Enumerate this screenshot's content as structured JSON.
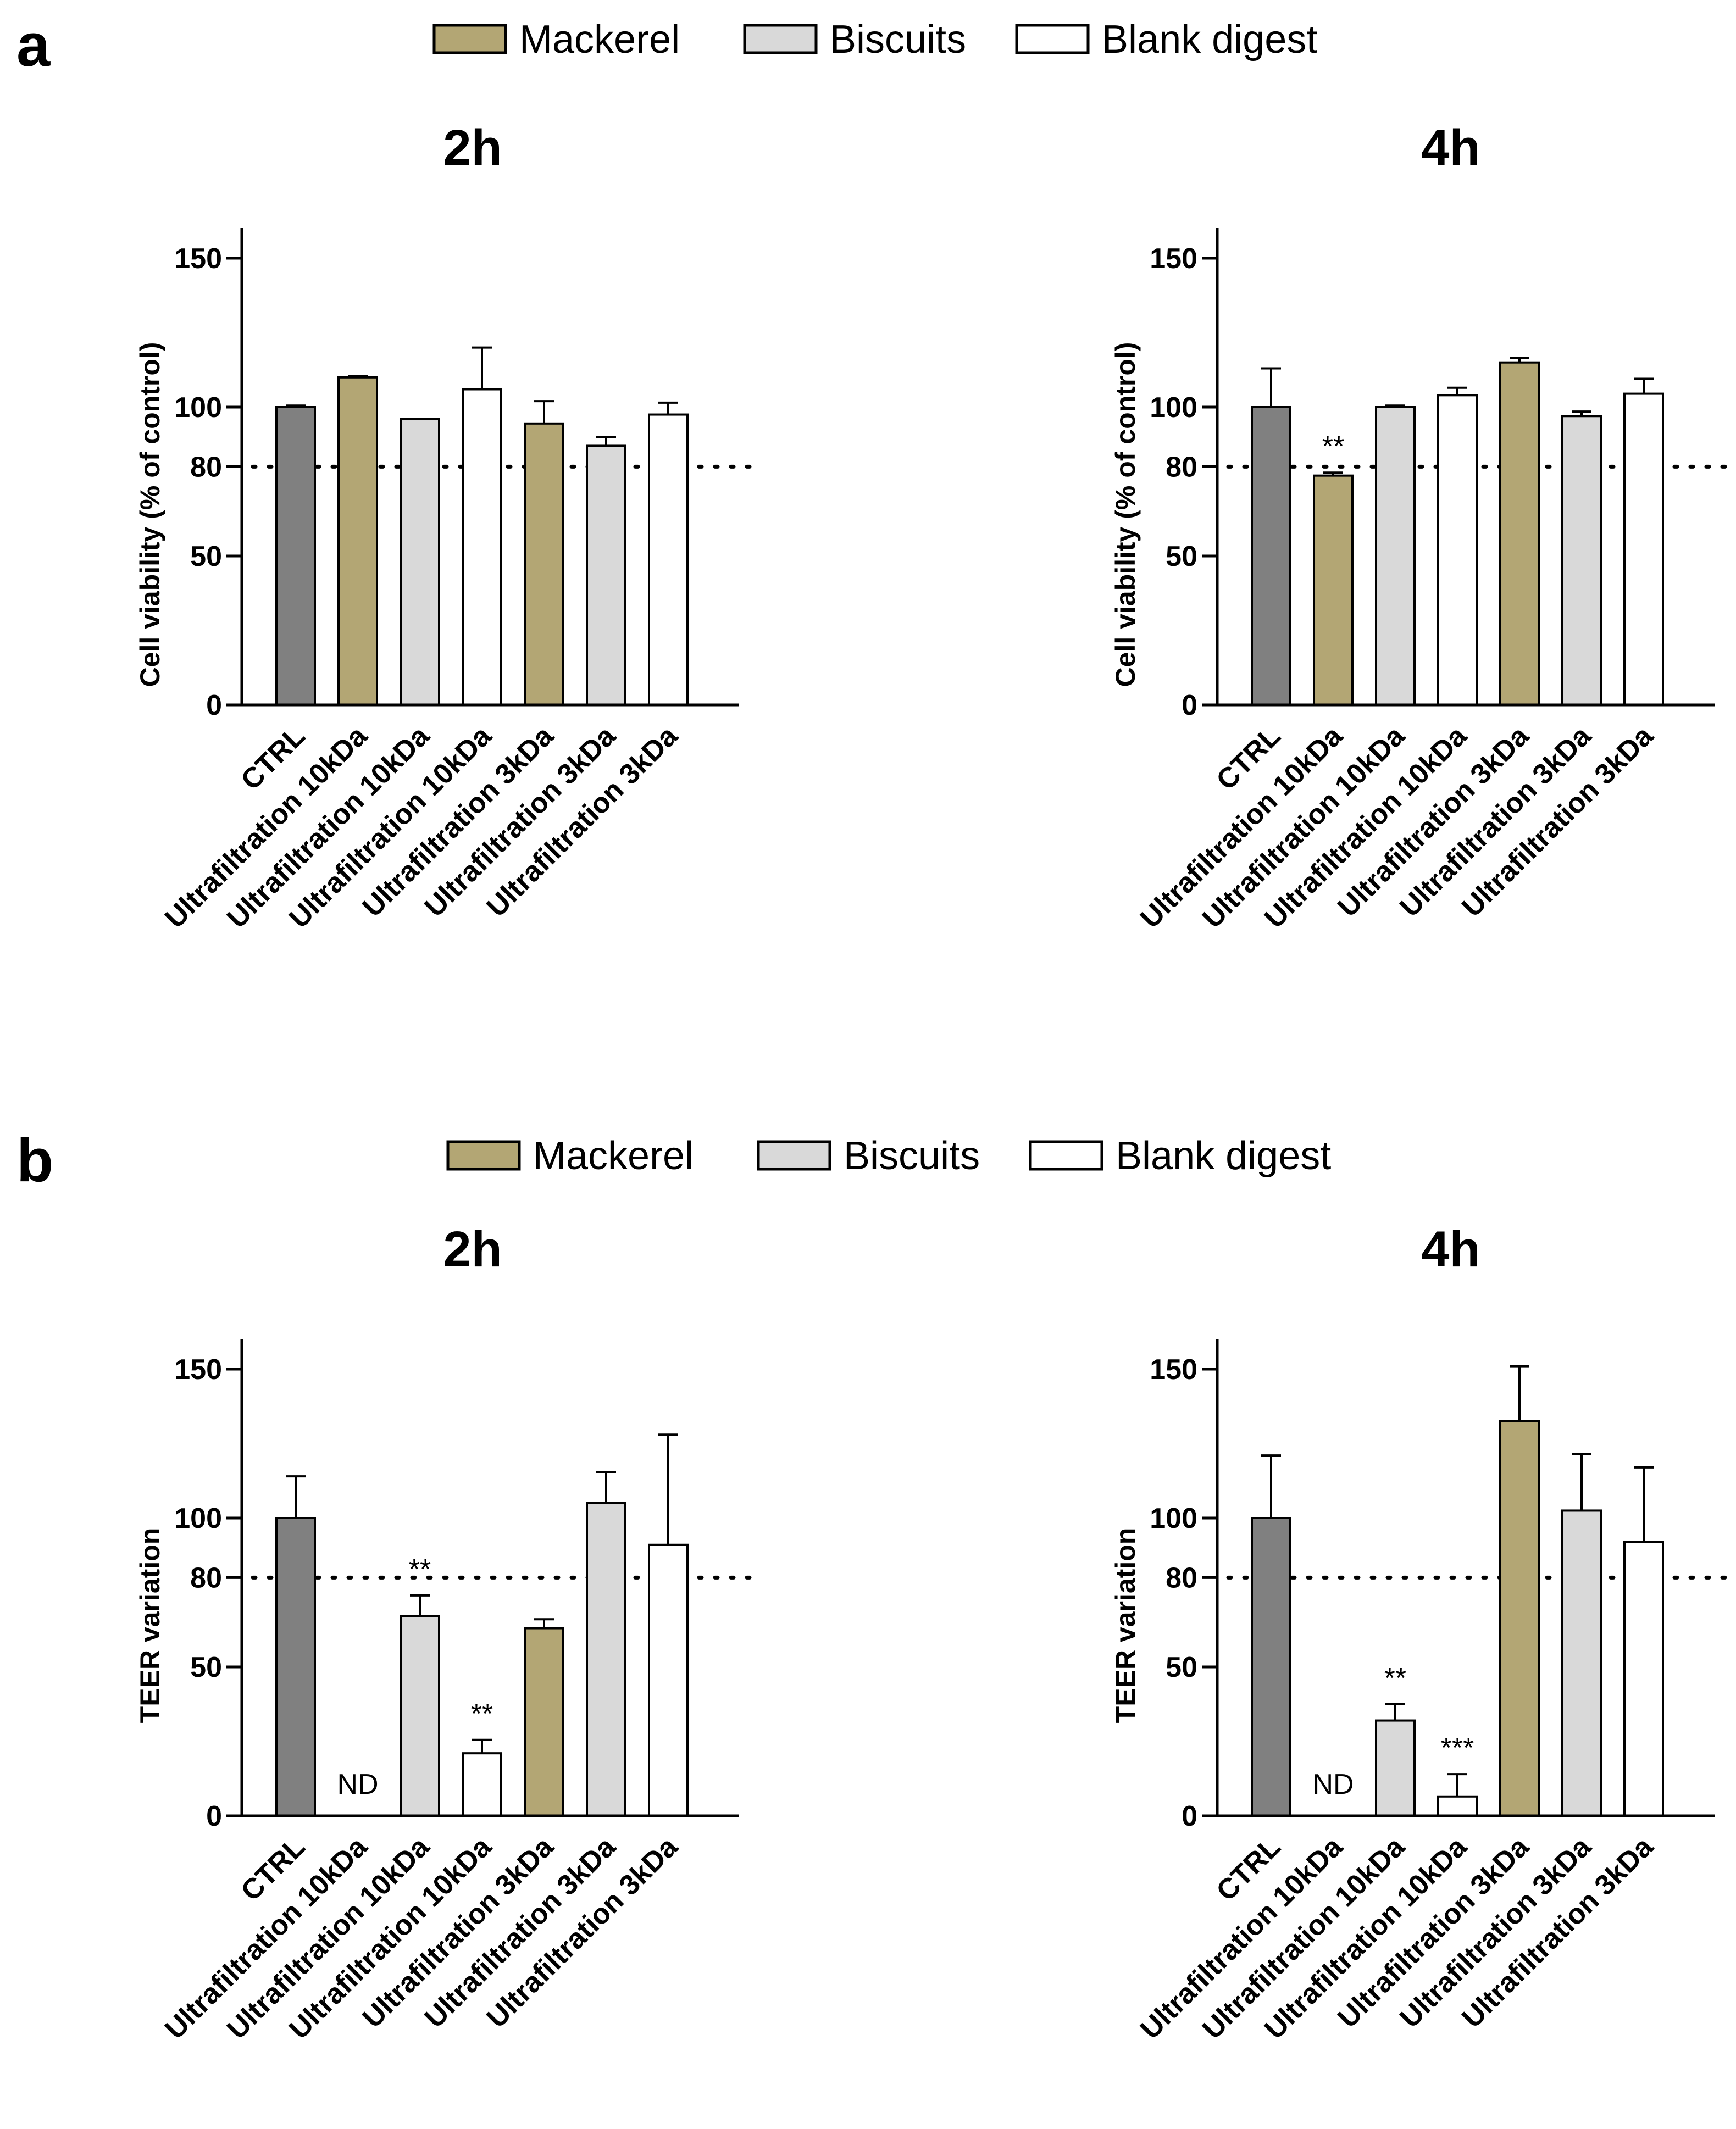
{
  "panels": [
    {
      "letter": "a",
      "legend": [
        "Mackerel",
        "Biscuits",
        "Blank digest"
      ]
    },
    {
      "letter": "b",
      "legend": [
        "Mackerel",
        "Biscuits",
        "Blank digest"
      ]
    }
  ],
  "colors": {
    "CTRL": "#808080",
    "Mackerel": "#b3a674",
    "Biscuits": "#d9d9d9",
    "Blank digest": "#ffffff"
  },
  "chart_data": [
    {
      "type": "bar",
      "panel": "a",
      "title": "2h",
      "ylabel": "Cell viability (% of control)",
      "ylim": [
        0,
        160
      ],
      "yticks": [
        0,
        50,
        80,
        100,
        150
      ],
      "reference_line": 80,
      "categories": [
        "CTRL",
        "Ultrafiltration 10kDa",
        "Ultrafiltration 10kDa",
        "Ultrafiltration 10kDa",
        "Ultrafiltration 3kDa",
        "Ultrafiltration 3kDa",
        "Ultrafiltration 3kDa"
      ],
      "groups": [
        "CTRL",
        "Mackerel",
        "Biscuits",
        "Blank digest",
        "Mackerel",
        "Biscuits",
        "Blank digest"
      ],
      "values": [
        100,
        110,
        96,
        106,
        94.5,
        87,
        97.5
      ],
      "errors": [
        0.5,
        0.5,
        0,
        14,
        7.5,
        3,
        4
      ],
      "annotations": [
        "",
        "",
        "",
        "",
        "",
        "",
        ""
      ]
    },
    {
      "type": "bar",
      "panel": "a",
      "title": "4h",
      "ylabel": "Cell viability (% of control)",
      "ylim": [
        0,
        160
      ],
      "yticks": [
        0,
        50,
        80,
        100,
        150
      ],
      "reference_line": 80,
      "categories": [
        "CTRL",
        "Ultrafiltration 10kDa",
        "Ultrafiltration 10kDa",
        "Ultrafiltration 10kDa",
        "Ultrafiltration 3kDa",
        "Ultrafiltration 3kDa",
        "Ultrafiltration 3kDa"
      ],
      "groups": [
        "CTRL",
        "Mackerel",
        "Biscuits",
        "Blank digest",
        "Mackerel",
        "Biscuits",
        "Blank digest"
      ],
      "values": [
        100,
        77,
        100,
        104,
        115,
        97,
        104.5
      ],
      "errors": [
        13,
        1,
        0.5,
        2.5,
        1.5,
        1.5,
        5
      ],
      "annotations": [
        "",
        "**",
        "",
        "",
        "",
        "",
        ""
      ]
    },
    {
      "type": "bar",
      "panel": "b",
      "title": "2h",
      "ylabel": "TEER variation",
      "ylim": [
        0,
        160
      ],
      "yticks": [
        0,
        50,
        80,
        100,
        150
      ],
      "reference_line": 80,
      "categories": [
        "CTRL",
        "Ultrafiltration 10kDa",
        "Ultrafiltration 10kDa",
        "Ultrafiltration 10kDa",
        "Ultrafiltration 3kDa",
        "Ultrafiltration 3kDa",
        "Ultrafiltration 3kDa"
      ],
      "groups": [
        "CTRL",
        "Mackerel",
        "Biscuits",
        "Blank digest",
        "Mackerel",
        "Biscuits",
        "Blank digest"
      ],
      "values": [
        100,
        0,
        67,
        21,
        63,
        105,
        91
      ],
      "errors": [
        14,
        0,
        7,
        4.5,
        3,
        10.5,
        37
      ],
      "annotations": [
        "",
        "ND",
        "**",
        "**",
        "",
        "",
        ""
      ]
    },
    {
      "type": "bar",
      "panel": "b",
      "title": "4h",
      "ylabel": "TEER variation",
      "ylim": [
        0,
        160
      ],
      "yticks": [
        0,
        50,
        80,
        100,
        150
      ],
      "reference_line": 80,
      "categories": [
        "CTRL",
        "Ultrafiltration 10kDa",
        "Ultrafiltration 10kDa",
        "Ultrafiltration 10kDa",
        "Ultrafiltration 3kDa",
        "Ultrafiltration 3kDa",
        "Ultrafiltration 3kDa"
      ],
      "groups": [
        "CTRL",
        "Mackerel",
        "Biscuits",
        "Blank digest",
        "Mackerel",
        "Biscuits",
        "Blank digest"
      ],
      "values": [
        100,
        0,
        32,
        6.5,
        132.5,
        102.5,
        92
      ],
      "errors": [
        21,
        0,
        5.5,
        7.5,
        18.5,
        19,
        25
      ],
      "annotations": [
        "",
        "ND",
        "**",
        "***",
        "",
        "",
        ""
      ]
    }
  ]
}
